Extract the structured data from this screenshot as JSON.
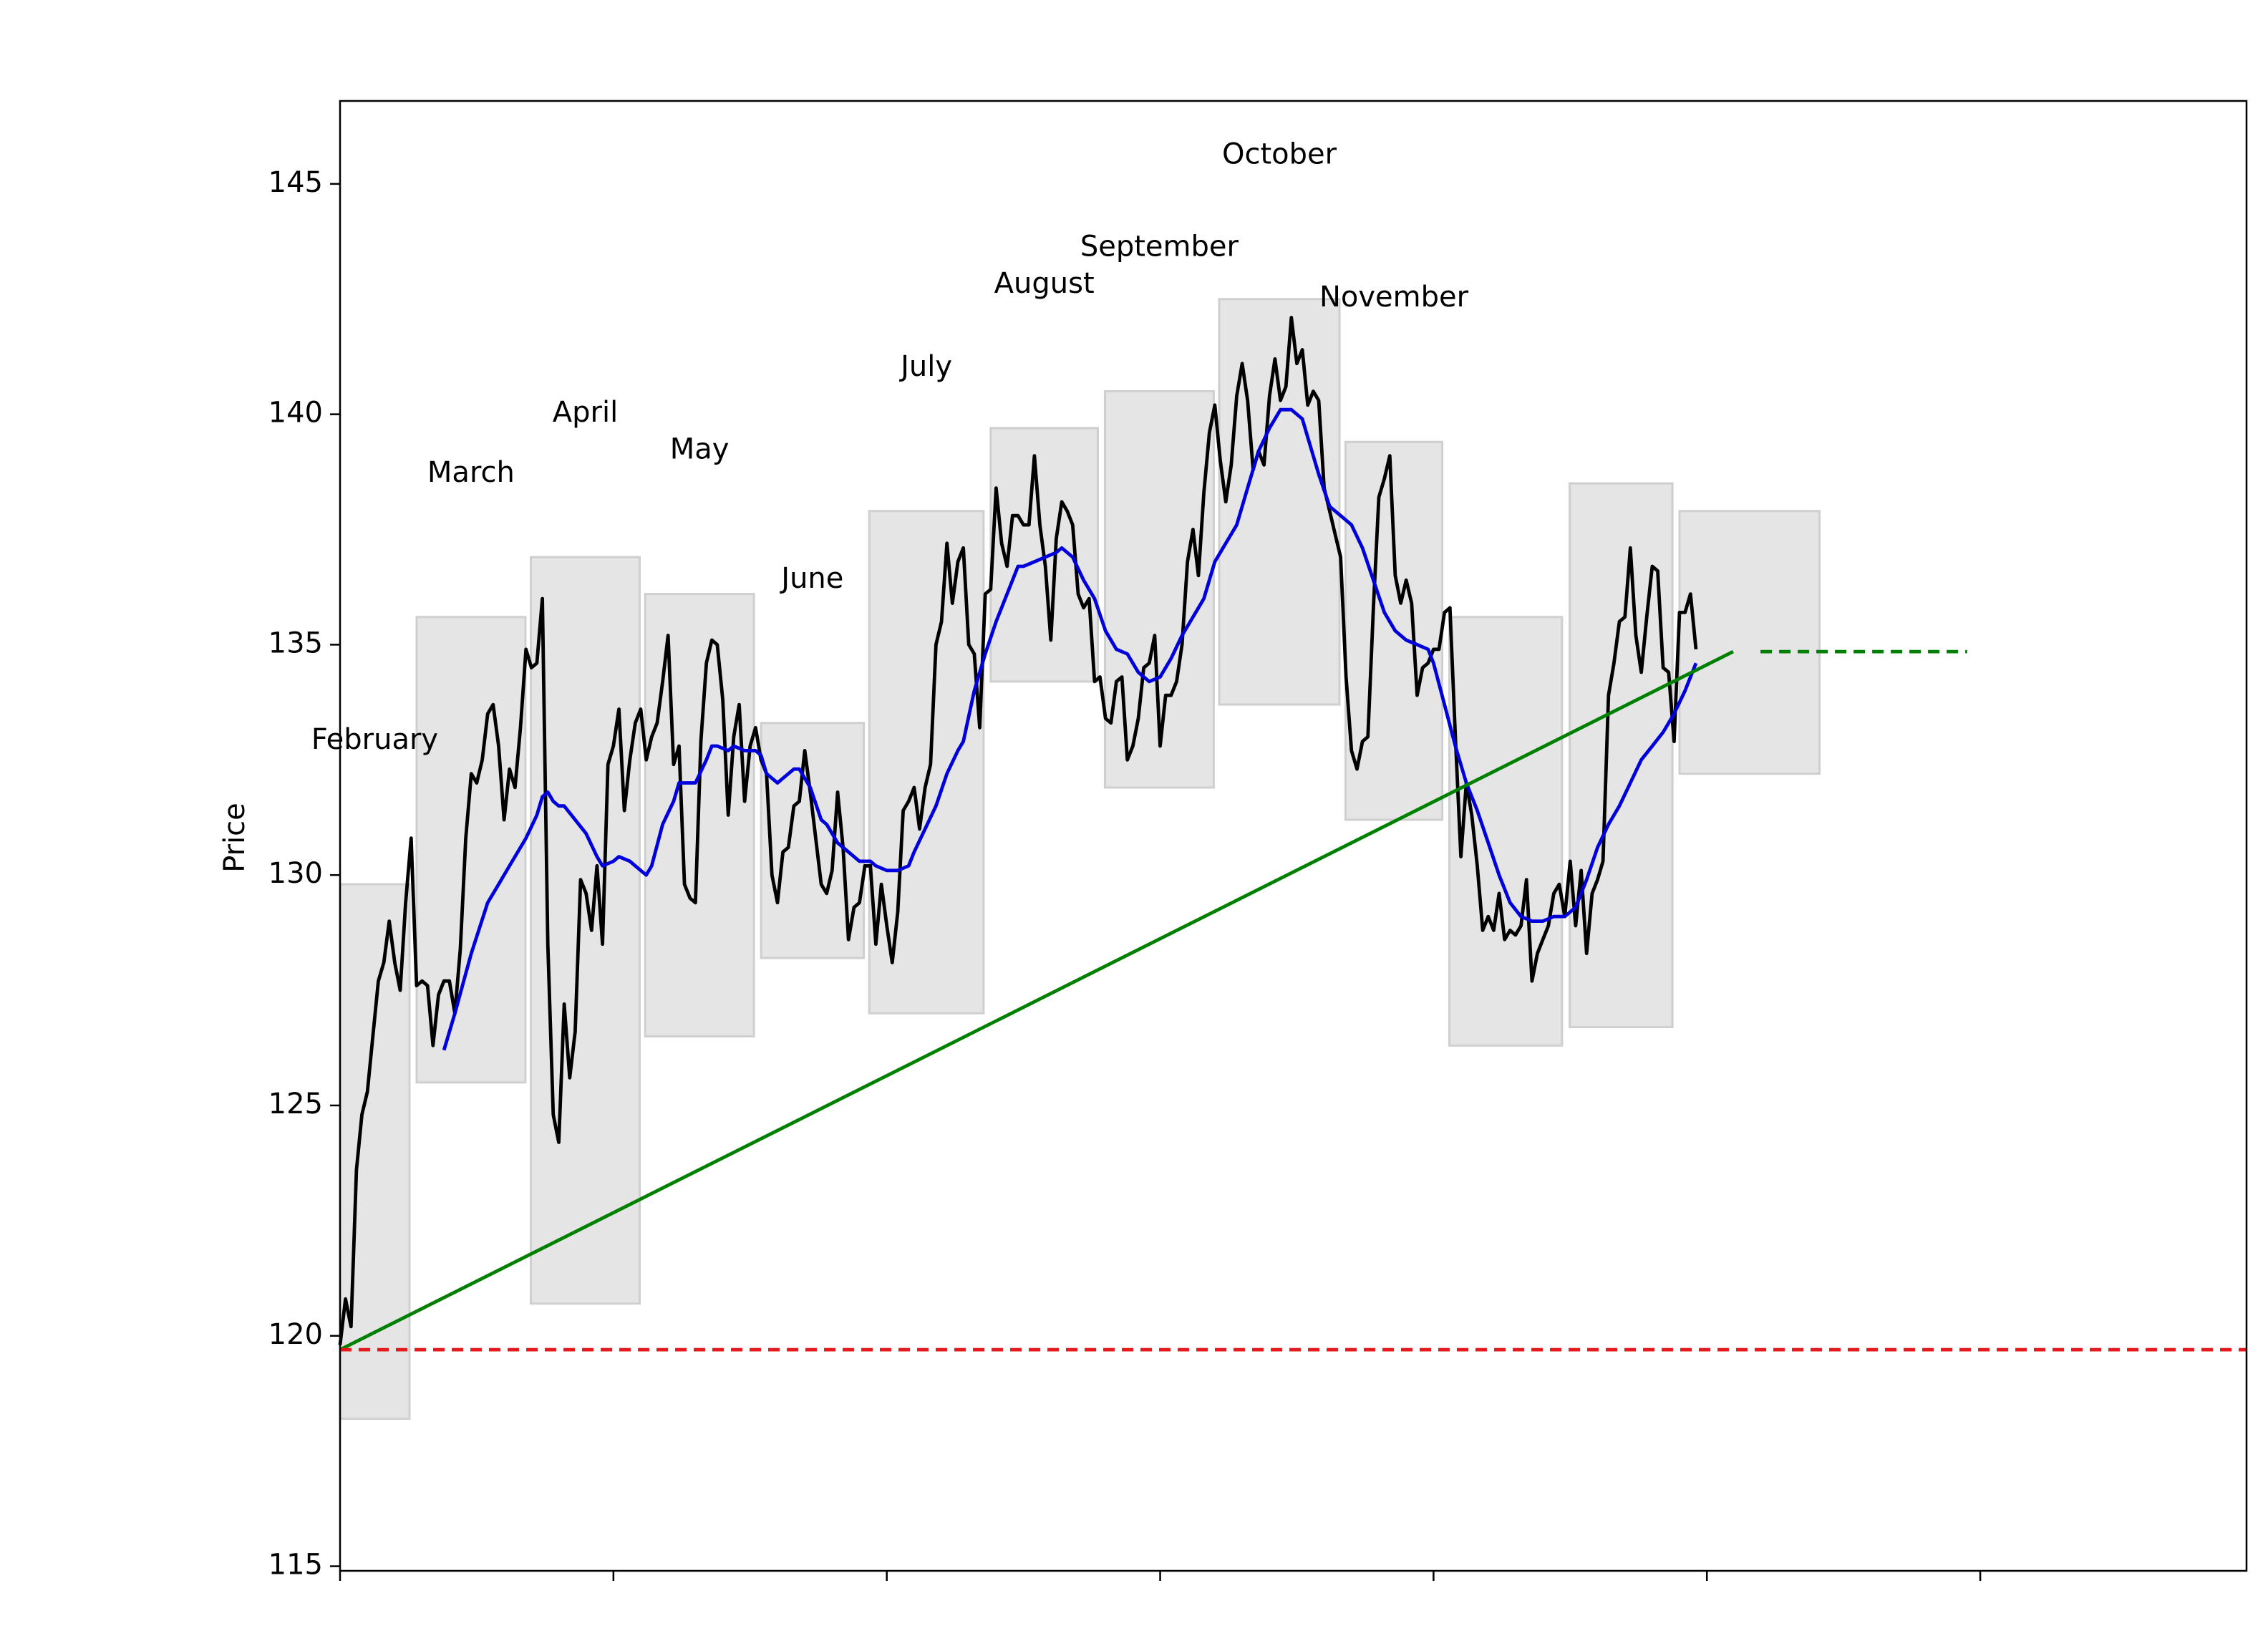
{
  "chart_data": {
    "type": "line",
    "ylabel": "Price",
    "xlim": [
      0,
      348.7
    ],
    "xticks": [
      0,
      50,
      100,
      150,
      200,
      250,
      300
    ],
    "ylim": [
      114.9,
      146.8
    ],
    "yticks": [
      115,
      120,
      125,
      130,
      135,
      140,
      145
    ],
    "boxes": {
      "color": "#e5e5e5",
      "labels": [
        "February",
        "March",
        "April",
        "May",
        "June",
        "July",
        "August",
        "September",
        "October",
        "November",
        null,
        null,
        null
      ],
      "x0": [
        0,
        14.0,
        34.9,
        55.8,
        77.0,
        96.8,
        119.0,
        139.9,
        160.8,
        183.9,
        202.9,
        224.9,
        245.0
      ],
      "x1": [
        12.7,
        33.9,
        54.8,
        75.7,
        95.8,
        117.7,
        138.6,
        159.8,
        182.8,
        201.6,
        223.5,
        243.7,
        270.6
      ],
      "low": [
        118.2,
        125.5,
        120.7,
        126.5,
        128.2,
        127.0,
        134.2,
        131.9,
        133.7,
        131.2,
        126.3,
        126.7,
        132.2
      ],
      "high": [
        129.8,
        135.6,
        136.9,
        136.1,
        133.3,
        137.9,
        139.7,
        140.5,
        142.5,
        139.4,
        135.6,
        138.5,
        137.9
      ]
    },
    "series": [
      {
        "color": "#000000",
        "width": 2.4,
        "x": [
          0,
          1,
          2,
          3,
          4,
          5,
          6,
          7,
          8,
          9,
          10,
          11,
          12,
          13,
          14,
          15,
          16,
          17,
          18,
          19,
          20,
          21,
          22,
          23,
          24,
          25,
          26,
          27,
          28,
          29,
          30,
          31,
          32,
          33,
          34,
          35,
          36,
          37,
          38,
          39,
          40,
          41,
          42,
          43,
          44,
          45,
          46,
          47,
          48,
          49,
          50,
          51,
          52,
          53,
          54,
          55,
          56,
          57,
          58,
          59,
          60,
          61,
          62,
          63,
          64,
          65,
          66,
          67,
          68,
          69,
          70,
          71,
          72,
          73,
          74,
          75,
          76,
          77,
          78,
          79,
          80,
          81,
          82,
          83,
          84,
          85,
          86,
          87,
          88,
          89,
          90,
          91,
          92,
          93,
          94,
          95,
          96,
          97,
          98,
          99,
          100,
          101,
          102,
          103,
          104,
          105,
          106,
          107,
          108,
          109,
          110,
          111,
          112,
          113,
          114,
          115,
          116,
          117,
          118,
          119,
          120,
          121,
          122,
          123,
          124,
          125,
          126,
          127,
          128,
          129,
          130,
          131,
          132,
          133,
          134,
          135,
          136,
          137,
          138,
          139,
          140,
          141,
          142,
          143,
          144,
          145,
          146,
          147,
          148,
          149,
          150,
          151,
          152,
          153,
          154,
          155,
          156,
          157,
          158,
          159,
          160,
          161,
          162,
          163,
          164,
          165,
          166,
          167,
          168,
          169,
          170,
          171,
          172,
          173,
          174,
          175,
          176,
          177,
          178,
          179,
          180,
          181,
          182,
          183,
          184,
          185,
          186,
          187,
          188,
          189,
          190,
          191,
          192,
          193,
          194,
          195,
          196,
          197,
          198,
          199,
          200,
          201,
          202,
          203,
          204,
          205,
          206,
          207,
          208,
          209,
          210,
          211,
          212,
          213,
          214,
          215,
          216,
          217,
          218,
          219,
          220,
          221,
          222,
          223,
          224,
          225,
          226,
          227,
          228,
          229,
          230,
          231,
          232,
          233,
          234,
          235,
          236,
          237,
          238,
          239,
          240,
          241,
          242,
          243,
          244,
          245,
          246,
          247,
          248
        ],
        "values": [
          119.8,
          120.8,
          120.2,
          123.6,
          124.8,
          125.3,
          126.5,
          127.7,
          128.1,
          129.0,
          128.1,
          127.5,
          129.4,
          130.8,
          127.6,
          127.7,
          127.6,
          126.3,
          127.4,
          127.7,
          127.7,
          127.0,
          128.4,
          130.8,
          132.2,
          132.0,
          132.5,
          133.5,
          133.7,
          132.8,
          131.2,
          132.3,
          131.9,
          133.2,
          134.9,
          134.5,
          134.6,
          136.0,
          128.5,
          124.8,
          124.2,
          127.2,
          125.6,
          126.6,
          129.9,
          129.6,
          128.8,
          130.2,
          128.5,
          132.4,
          132.8,
          133.6,
          131.4,
          132.5,
          133.3,
          133.6,
          132.5,
          133.0,
          133.3,
          134.2,
          135.2,
          132.4,
          132.8,
          129.8,
          129.5,
          129.4,
          132.9,
          134.6,
          135.1,
          135.0,
          133.8,
          131.3,
          133.0,
          133.7,
          131.6,
          132.8,
          133.2,
          132.5,
          132.2,
          130.0,
          129.4,
          130.5,
          130.6,
          131.5,
          131.6,
          132.7,
          131.8,
          130.8,
          129.8,
          129.6,
          130.1,
          131.8,
          130.6,
          128.6,
          129.3,
          129.4,
          130.2,
          130.2,
          128.5,
          129.8,
          128.9,
          128.1,
          129.2,
          131.4,
          131.6,
          131.9,
          131.0,
          131.9,
          132.4,
          135.0,
          135.5,
          137.2,
          135.9,
          136.8,
          137.1,
          135.0,
          134.8,
          133.2,
          136.1,
          136.2,
          138.4,
          137.2,
          136.7,
          137.8,
          137.8,
          137.6,
          137.6,
          139.1,
          137.6,
          136.7,
          135.1,
          137.3,
          138.1,
          137.9,
          137.6,
          136.1,
          135.8,
          136.0,
          134.2,
          134.3,
          133.4,
          133.3,
          134.2,
          134.3,
          132.5,
          132.8,
          133.4,
          134.5,
          134.6,
          135.2,
          132.8,
          133.9,
          133.9,
          134.2,
          135.0,
          136.8,
          137.5,
          136.5,
          138.3,
          139.6,
          140.2,
          139.0,
          138.1,
          138.9,
          140.4,
          141.1,
          140.3,
          138.8,
          139.2,
          138.9,
          140.4,
          141.2,
          140.3,
          140.6,
          142.1,
          141.1,
          141.4,
          140.2,
          140.5,
          140.3,
          138.4,
          137.9,
          137.4,
          136.9,
          134.3,
          132.7,
          132.3,
          132.9,
          133.0,
          135.8,
          138.2,
          138.6,
          139.1,
          136.5,
          135.9,
          136.4,
          135.9,
          133.9,
          134.5,
          134.6,
          134.9,
          134.9,
          135.7,
          135.8,
          133.0,
          130.4,
          132.0,
          131.3,
          130.2,
          128.8,
          129.1,
          128.8,
          129.6,
          128.6,
          128.8,
          128.7,
          128.9,
          129.9,
          127.7,
          128.3,
          128.6,
          128.9,
          129.6,
          129.8,
          129.1,
          130.3,
          128.9,
          130.1,
          128.3,
          129.6,
          129.9,
          130.3,
          133.9,
          134.6,
          135.5,
          135.6,
          137.1,
          135.2,
          134.4,
          135.6,
          136.7,
          136.6,
          134.5,
          134.4,
          132.9,
          135.7,
          135.7,
          136.1,
          134.9
        ]
      },
      {
        "color": "#0000dd",
        "width": 2.4,
        "x": [
          19,
          21,
          24,
          27,
          29,
          31,
          34,
          36,
          37,
          38,
          39,
          40,
          41,
          43,
          45,
          47,
          48,
          50,
          51,
          53,
          55,
          56,
          57,
          59,
          61,
          62,
          64,
          65,
          67,
          68,
          69,
          71,
          72,
          74,
          76,
          77,
          78,
          80,
          81,
          83,
          84,
          86,
          88,
          89,
          91,
          93,
          95,
          97,
          98,
          100,
          102,
          104,
          105,
          107,
          109,
          111,
          113,
          114,
          116,
          118,
          120,
          122,
          124,
          125,
          127,
          129,
          131,
          132,
          134,
          136,
          138,
          140,
          142,
          144,
          146,
          148,
          150,
          152,
          154,
          156,
          158,
          160,
          162,
          164,
          166,
          168,
          170,
          172,
          174,
          176,
          177,
          179,
          181,
          183,
          185,
          187,
          189,
          191,
          193,
          195,
          197,
          199,
          200,
          202,
          204,
          206,
          208,
          210,
          212,
          214,
          216,
          218,
          220,
          222,
          224,
          226,
          228,
          230,
          232,
          234,
          236,
          238,
          240,
          242,
          244,
          246,
          248
        ],
        "values": [
          126.2,
          127.0,
          128.3,
          129.4,
          129.8,
          130.2,
          130.8,
          131.3,
          131.7,
          131.8,
          131.6,
          131.5,
          131.5,
          131.2,
          130.9,
          130.4,
          130.2,
          130.3,
          130.4,
          130.3,
          130.1,
          130.0,
          130.2,
          131.1,
          131.6,
          132.0,
          132.0,
          132.0,
          132.5,
          132.8,
          132.8,
          132.7,
          132.8,
          132.7,
          132.7,
          132.6,
          132.2,
          132.0,
          132.1,
          132.3,
          132.3,
          131.9,
          131.2,
          131.1,
          130.7,
          130.5,
          130.3,
          130.3,
          130.2,
          130.1,
          130.1,
          130.2,
          130.5,
          131.0,
          131.5,
          132.2,
          132.7,
          132.9,
          134.0,
          134.8,
          135.5,
          136.1,
          136.7,
          136.7,
          136.8,
          136.9,
          137.0,
          137.1,
          136.9,
          136.4,
          136.0,
          135.3,
          134.9,
          134.8,
          134.4,
          134.2,
          134.3,
          134.7,
          135.2,
          135.6,
          136.0,
          136.8,
          137.2,
          137.6,
          138.4,
          139.2,
          139.7,
          140.1,
          140.1,
          139.9,
          139.5,
          138.7,
          138.0,
          137.8,
          137.6,
          137.1,
          136.4,
          135.7,
          135.3,
          135.1,
          135.0,
          134.9,
          134.6,
          133.7,
          132.8,
          132.0,
          131.4,
          130.7,
          130.0,
          129.4,
          129.1,
          129.0,
          129.0,
          129.1,
          129.1,
          129.3,
          129.9,
          130.6,
          131.1,
          131.5,
          132.0,
          132.5,
          132.8,
          133.1,
          133.5,
          134.0,
          134.6
        ]
      },
      {
        "color": "#008000",
        "width": 2.4,
        "x": [
          0,
          254.8
        ],
        "values": [
          119.7,
          134.85
        ]
      },
      {
        "color": "#008000",
        "width": 2.4,
        "dash": true,
        "x": [
          259.8,
          297.6
        ],
        "values": [
          134.85,
          134.85
        ]
      },
      {
        "color": "#e41a1c",
        "width": 2.4,
        "dash": true,
        "x": [
          0,
          348.7
        ],
        "values": [
          119.7,
          119.7
        ]
      }
    ]
  }
}
